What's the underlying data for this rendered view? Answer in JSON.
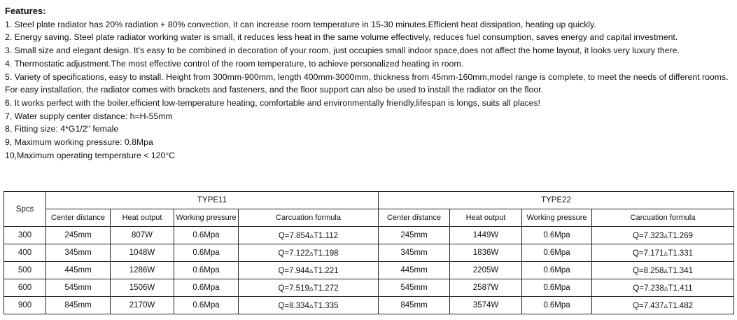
{
  "features": {
    "title": "Features:",
    "items": [
      "1. Steel plate radiator has 20% radiation + 80% convection, it can increase room temperature in 15-30 minutes.Efficient heat dissipation, heating up quickly.",
      "2. Energy saving. Steel plate radiator working water is small, it reduces less heat in the same volume effectively, reduces fuel consumption, saves energy and capital investment.",
      "3. Small size and elegant design. It's easy to be combined in decoration of your room, just occupies small indoor space,does not affect the home layout, it looks very luxury there.",
      "4. Thermostatic adjustment.The most effective control of the room temperature, to achieve personalized heating in room.",
      "5. Variety of specifications, easy to install. Height from 300mm-900mm, length 400mm-3000mm, thickness from 45mm-160mm,model range is complete, to meet the needs of different rooms. For easy installation, the radiator comes with brackets and fasteners, and the floor support can also be used to install the radiator on the floor.",
      "6. It works perfect with the boiler,efficient low-temperature heating, comfortable and environmentally friendly,lifespan is longs, suits all places!",
      "7, Water supply center distance: h=H-55mm",
      "8, Fitting size: 4*G1/2\" female",
      "9, Maximum working pressure: 0.8Mpa",
      "10,Maximum operating temperature < 120°C"
    ]
  },
  "table": {
    "spcs_header": "Spcs",
    "type11": "TYPE11",
    "type22": "TYPE22",
    "columns": [
      "Center distance",
      "Heat output",
      "Working pressure",
      "Carcuation formula"
    ],
    "rows": [
      [
        "300",
        "245mm",
        "807W",
        "0.6Mpa",
        "Q=7.854▵T1.112",
        "245mm",
        "1449W",
        "0.6Mpa",
        "Q=7.323▵T1.269"
      ],
      [
        "400",
        "345mm",
        "1048W",
        "0.6Mpa",
        "Q=7.122▵T1.198",
        "345mm",
        "1836W",
        "0.6Mpa",
        "Q=7.171▵T1.331"
      ],
      [
        "500",
        "445mm",
        "1286W",
        "0.6Mpa",
        "Q=7.944▵T1.221",
        "445mm",
        "2205W",
        "0.6Mpa",
        "Q=8.258▵T1.341"
      ],
      [
        "600",
        "545mm",
        "1506W",
        "0.6Mpa",
        "Q=7.519▵T1.272",
        "545mm",
        "2587W",
        "0.6Mpa",
        "Q=7.238▵T1.411"
      ],
      [
        "900",
        "845mm",
        "2170W",
        "0.6Mpa",
        "Q=8.334▵T1.335",
        "845mm",
        "3574W",
        "0.6Mpa",
        "Q=7.437▵T1.482"
      ]
    ]
  }
}
